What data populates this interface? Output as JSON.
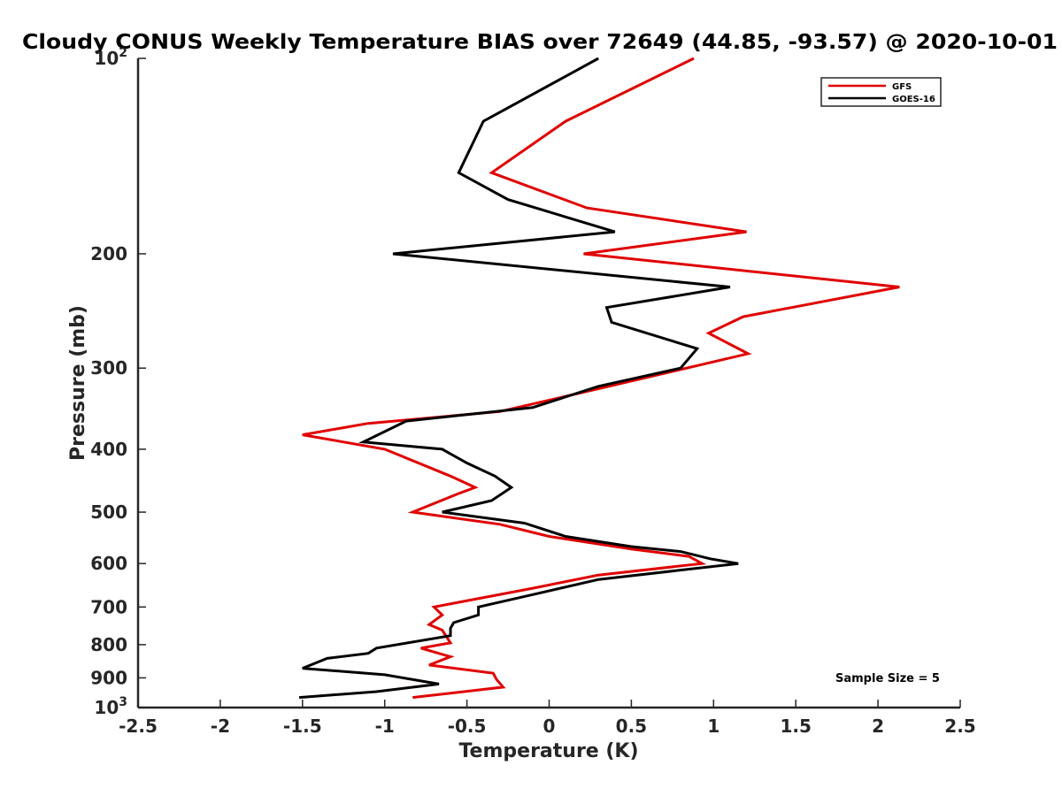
{
  "chart_data": {
    "type": "line",
    "title": "Cloudy CONUS Weekly Temperature BIAS over 72649 (44.85, -93.57) @ 2020-10-01",
    "xlabel": "Temperature (K)",
    "ylabel": "Pressure (mb)",
    "xlim": [
      -2.5,
      2.5
    ],
    "ylim": [
      100,
      1000
    ],
    "y_scale": "log",
    "y_reversed": true,
    "grid": false,
    "legend_position": "top-right",
    "x_ticks": [
      -2.5,
      -2,
      -1.5,
      -1,
      -0.5,
      0,
      0.5,
      1,
      1.5,
      2,
      2.5
    ],
    "x_tick_labels": [
      "-2.5",
      "-2",
      "-1.5",
      "-1",
      "-0.5",
      "0",
      "0.5",
      "1",
      "1.5",
      "2",
      "2.5"
    ],
    "y_ticks": [
      100,
      200,
      300,
      400,
      500,
      600,
      700,
      800,
      900,
      1000
    ],
    "y_tick_labels": [
      {
        "base": "10",
        "exp": "2"
      },
      {
        "base": "200",
        "exp": ""
      },
      {
        "base": "300",
        "exp": ""
      },
      {
        "base": "400",
        "exp": ""
      },
      {
        "base": "500",
        "exp": ""
      },
      {
        "base": "600",
        "exp": ""
      },
      {
        "base": "700",
        "exp": ""
      },
      {
        "base": "800",
        "exp": ""
      },
      {
        "base": "900",
        "exp": ""
      },
      {
        "base": "10",
        "exp": "3"
      }
    ],
    "annotation": "Sample Size = 5",
    "series": [
      {
        "name": "GFS",
        "color": "#e00000",
        "points": [
          {
            "x": 0.88,
            "y": 100
          },
          {
            "x": 0.1,
            "y": 125
          },
          {
            "x": -0.35,
            "y": 150
          },
          {
            "x": 0.23,
            "y": 170
          },
          {
            "x": 1.2,
            "y": 185
          },
          {
            "x": 0.21,
            "y": 200
          },
          {
            "x": 2.13,
            "y": 225
          },
          {
            "x": 1.18,
            "y": 250
          },
          {
            "x": 0.97,
            "y": 265
          },
          {
            "x": 1.21,
            "y": 285
          },
          {
            "x": 0.25,
            "y": 325
          },
          {
            "x": -0.3,
            "y": 350
          },
          {
            "x": -1.1,
            "y": 365
          },
          {
            "x": -1.5,
            "y": 380
          },
          {
            "x": -1.0,
            "y": 400
          },
          {
            "x": -0.6,
            "y": 440
          },
          {
            "x": -0.45,
            "y": 458
          },
          {
            "x": -0.55,
            "y": 468
          },
          {
            "x": -0.83,
            "y": 500
          },
          {
            "x": -0.3,
            "y": 522
          },
          {
            "x": 0.0,
            "y": 545
          },
          {
            "x": 0.5,
            "y": 570
          },
          {
            "x": 0.85,
            "y": 585
          },
          {
            "x": 0.93,
            "y": 600
          },
          {
            "x": 0.3,
            "y": 625
          },
          {
            "x": -0.1,
            "y": 655
          },
          {
            "x": -0.7,
            "y": 700
          },
          {
            "x": -0.65,
            "y": 720
          },
          {
            "x": -0.73,
            "y": 745
          },
          {
            "x": -0.65,
            "y": 760
          },
          {
            "x": -0.6,
            "y": 795
          },
          {
            "x": -0.78,
            "y": 810
          },
          {
            "x": -0.6,
            "y": 835
          },
          {
            "x": -0.73,
            "y": 860
          },
          {
            "x": -0.34,
            "y": 885
          },
          {
            "x": -0.32,
            "y": 905
          },
          {
            "x": -0.28,
            "y": 930
          },
          {
            "x": -0.83,
            "y": 965
          }
        ]
      },
      {
        "name": "GOES-16",
        "color": "#000000",
        "points": [
          {
            "x": 0.3,
            "y": 100
          },
          {
            "x": -0.4,
            "y": 125
          },
          {
            "x": -0.55,
            "y": 150
          },
          {
            "x": -0.25,
            "y": 165
          },
          {
            "x": 0.4,
            "y": 185
          },
          {
            "x": -0.95,
            "y": 200
          },
          {
            "x": 1.1,
            "y": 225
          },
          {
            "x": 0.35,
            "y": 242
          },
          {
            "x": 0.38,
            "y": 255
          },
          {
            "x": 0.9,
            "y": 280
          },
          {
            "x": 0.8,
            "y": 300
          },
          {
            "x": 0.3,
            "y": 320
          },
          {
            "x": -0.1,
            "y": 345
          },
          {
            "x": -0.87,
            "y": 362
          },
          {
            "x": -1.13,
            "y": 390
          },
          {
            "x": -0.65,
            "y": 400
          },
          {
            "x": -0.5,
            "y": 420
          },
          {
            "x": -0.33,
            "y": 440
          },
          {
            "x": -0.23,
            "y": 458
          },
          {
            "x": -0.35,
            "y": 480
          },
          {
            "x": -0.65,
            "y": 500
          },
          {
            "x": -0.15,
            "y": 520
          },
          {
            "x": 0.1,
            "y": 545
          },
          {
            "x": 0.5,
            "y": 565
          },
          {
            "x": 0.8,
            "y": 575
          },
          {
            "x": 0.98,
            "y": 590
          },
          {
            "x": 1.15,
            "y": 600
          },
          {
            "x": 0.3,
            "y": 635
          },
          {
            "x": -0.1,
            "y": 670
          },
          {
            "x": -0.43,
            "y": 700
          },
          {
            "x": -0.43,
            "y": 720
          },
          {
            "x": -0.58,
            "y": 740
          },
          {
            "x": -0.6,
            "y": 755
          },
          {
            "x": -0.6,
            "y": 775
          },
          {
            "x": -1.05,
            "y": 810
          },
          {
            "x": -1.1,
            "y": 825
          },
          {
            "x": -1.35,
            "y": 840
          },
          {
            "x": -1.5,
            "y": 870
          },
          {
            "x": -1.0,
            "y": 890
          },
          {
            "x": -0.67,
            "y": 920
          },
          {
            "x": -1.05,
            "y": 945
          },
          {
            "x": -1.52,
            "y": 965
          }
        ]
      }
    ]
  }
}
